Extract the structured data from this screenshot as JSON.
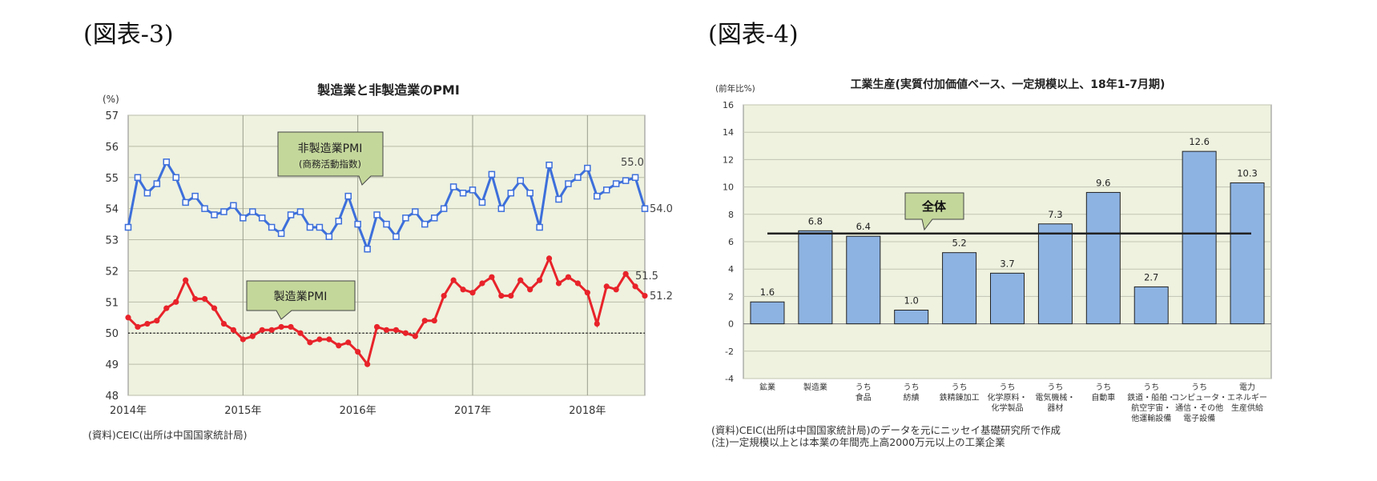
{
  "fig3": {
    "label": "(図表-3)",
    "source": "(資料)CEIC(出所は中国国家統計局)",
    "chart_data": {
      "type": "line",
      "title": "製造業と非製造業のPMI",
      "yunit": "(%)",
      "ylim": [
        48,
        57
      ],
      "yticks": [
        "48",
        "49",
        "50",
        "51",
        "52",
        "53",
        "54",
        "55",
        "56",
        "57"
      ],
      "xticks": [
        {
          "label": "2014年",
          "index": 0
        },
        {
          "label": "2015年",
          "index": 12
        },
        {
          "label": "2016年",
          "index": 24
        },
        {
          "label": "2017年",
          "index": 36
        },
        {
          "label": "2018年",
          "index": 48
        }
      ],
      "x_start": "2014-01",
      "x_end": "2018-07",
      "reference_line": 50,
      "series": [
        {
          "name": "非製造業PMI",
          "color": "#3d6fdb",
          "marker": "square",
          "values": [
            53.4,
            55.0,
            54.5,
            54.8,
            55.5,
            55.0,
            54.2,
            54.4,
            54.0,
            53.8,
            53.9,
            54.1,
            53.7,
            53.9,
            53.7,
            53.4,
            53.2,
            53.8,
            53.9,
            53.4,
            53.4,
            53.1,
            53.6,
            54.4,
            53.5,
            52.7,
            53.8,
            53.5,
            53.1,
            53.7,
            53.9,
            53.5,
            53.7,
            54.0,
            54.7,
            54.5,
            54.6,
            54.2,
            55.1,
            54.0,
            54.5,
            54.9,
            54.5,
            53.4,
            55.4,
            54.3,
            54.8,
            55.0,
            55.3,
            54.4,
            54.6,
            54.8,
            54.9,
            55.0,
            54.0
          ]
        },
        {
          "name": "製造業PMI",
          "color": "#e8232a",
          "marker": "circle",
          "values": [
            50.5,
            50.2,
            50.3,
            50.4,
            50.8,
            51.0,
            51.7,
            51.1,
            51.1,
            50.8,
            50.3,
            50.1,
            49.8,
            49.9,
            50.1,
            50.1,
            50.2,
            50.2,
            50.0,
            49.7,
            49.8,
            49.8,
            49.6,
            49.7,
            49.4,
            49.0,
            50.2,
            50.1,
            50.1,
            50.0,
            49.9,
            50.4,
            50.4,
            51.2,
            51.7,
            51.4,
            51.3,
            51.6,
            51.8,
            51.2,
            51.2,
            51.7,
            51.4,
            51.7,
            52.4,
            51.6,
            51.8,
            51.6,
            51.3,
            50.3,
            51.5,
            51.4,
            51.9,
            51.5,
            51.2
          ]
        }
      ],
      "annotations": {
        "nonmfg_title": "非製造業PMI",
        "nonmfg_sub": "(商務活動指数)",
        "mfg_title": "製造業PMI",
        "labels": [
          "55.0",
          "54.0",
          "51.5",
          "51.2"
        ]
      }
    }
  },
  "fig4": {
    "label": "(図表-4)",
    "source_line1": "(資料)CEIC(出所は中国国家統計局)のデータを元にニッセイ基礎研究所で作成",
    "source_line2": "(注)一定規模以上とは本業の年間売上高2000万元以上の工業企業",
    "chart_data": {
      "type": "bar",
      "title": "工業生産(実質付加価値ベース、一定規模以上、18年1-7月期)",
      "yunit": "(前年比%)",
      "ylim": [
        -4,
        16
      ],
      "yticks": [
        "-4",
        "-2",
        "0",
        "2",
        "4",
        "6",
        "8",
        "10",
        "12",
        "14",
        "16"
      ],
      "categories": [
        [
          "鉱業"
        ],
        [
          "製造業"
        ],
        [
          "うち",
          "食品"
        ],
        [
          "うち",
          "紡績"
        ],
        [
          "うち",
          "鉄精錬加工"
        ],
        [
          "うち",
          "化学原料・",
          "化学製品"
        ],
        [
          "うち",
          "電気機械・",
          "器材"
        ],
        [
          "うち",
          "自動車"
        ],
        [
          "うち",
          "鉄道・船舶・",
          "航空宇宙・",
          "他運輸設備"
        ],
        [
          "うち",
          "コンピュータ・",
          "通信・その他",
          "電子設備"
        ],
        [
          "電力",
          "エネルギー",
          "生産供給"
        ]
      ],
      "values": [
        1.6,
        6.8,
        6.4,
        1.0,
        5.2,
        3.7,
        7.3,
        9.6,
        2.7,
        12.6,
        10.3
      ],
      "value_labels": [
        "1.6",
        "6.8",
        "6.4",
        "1.0",
        "5.2",
        "3.7",
        "7.3",
        "9.6",
        "2.7",
        "12.6",
        "10.3"
      ],
      "overall": 6.6,
      "overall_label": "全体",
      "bar_color": "#8db3e2"
    }
  }
}
